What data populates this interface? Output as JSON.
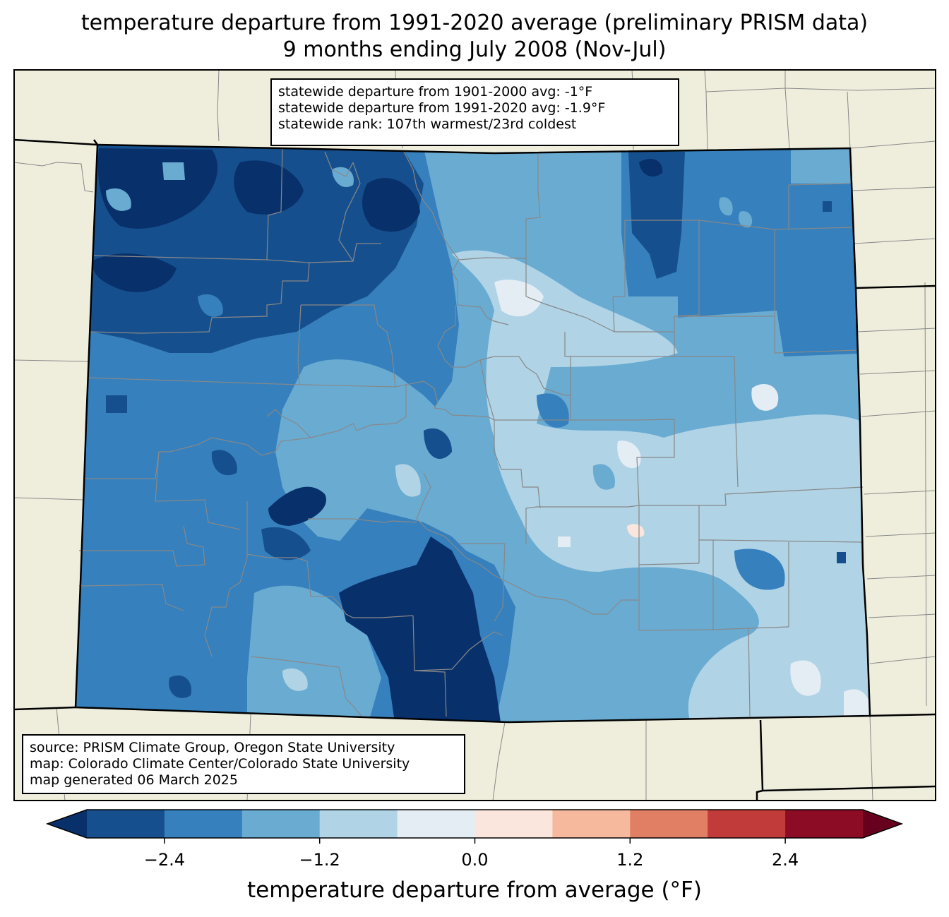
{
  "title": {
    "line1": "temperature departure from 1991-2020 average (preliminary PRISM data)",
    "line2": "9 months ending July 2008 (Nov-Jul)"
  },
  "stats_box": {
    "line1": "statewide departure from 1901-2000 avg: -1°F",
    "line2": "statewide departure from 1991-2020 avg: -1.9°F",
    "line3": "statewide rank: 107th warmest/23rd coldest"
  },
  "credits_box": {
    "line1": "source: PRISM Climate Group, Oregon State University",
    "line2": "map: Colorado Climate Center/Colorado State University",
    "line3": "map generated 06 March 2025"
  },
  "colorbar": {
    "label": "temperature departure from average (°F)",
    "ticks": [
      "−2.4",
      "−1.2",
      "0.0",
      "1.2",
      "2.4"
    ],
    "tick_values": [
      -2.4,
      -1.2,
      0.0,
      1.2,
      2.4
    ],
    "min": -3.0,
    "max": 3.0,
    "step": 0.6,
    "colors": [
      "#08306b",
      "#164f8d",
      "#3580bd",
      "#6aabd2",
      "#b0d3e6",
      "#e4edf4",
      "#fbe6dd",
      "#f7b99e",
      "#e07f64",
      "#c13b3a",
      "#8b0c24",
      "#67001f"
    ]
  },
  "map_colors": {
    "land": "#efeedd",
    "county_line": "#888888",
    "state_line": "#000000"
  }
}
